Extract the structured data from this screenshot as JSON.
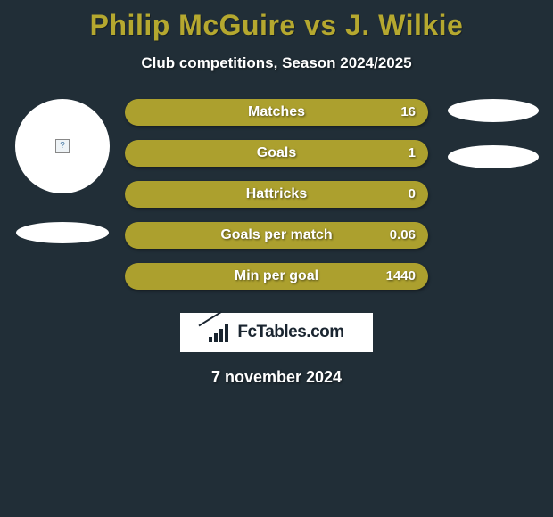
{
  "background_color": "#212e37",
  "title": {
    "text": "Philip McGuire vs J. Wilkie",
    "color": "#b5a82f",
    "fontsize": 32
  },
  "subtitle": {
    "text": "Club competitions, Season 2024/2025",
    "color": "#ffffff",
    "fontsize": 17
  },
  "stats": {
    "bar_color": "#aca02e",
    "text_color": "#ffffff",
    "label_fontsize": 16,
    "value_fontsize": 15,
    "rows": [
      {
        "label": "Matches",
        "value": "16"
      },
      {
        "label": "Goals",
        "value": "1"
      },
      {
        "label": "Hattricks",
        "value": "0"
      },
      {
        "label": "Goals per match",
        "value": "0.06"
      },
      {
        "label": "Min per goal",
        "value": "1440"
      }
    ]
  },
  "player_left": {
    "avatar_bg": "#ffffff",
    "placeholder": "?"
  },
  "player_right": {
    "shadow_bg": "#ffffff"
  },
  "logo": {
    "text": "FcTables.com",
    "bg": "#ffffff",
    "text_color": "#1a2530"
  },
  "date": {
    "text": "7 november 2024",
    "color": "#ffffff",
    "fontsize": 18
  }
}
